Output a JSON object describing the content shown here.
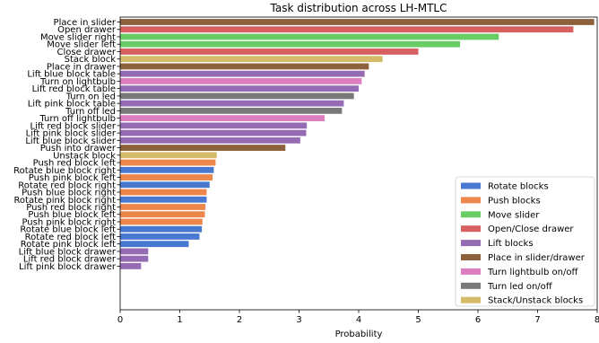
{
  "chart_data": {
    "type": "bar",
    "orientation": "horizontal",
    "title": "Task distribution across LH-MTLC",
    "xlabel": "Probability",
    "ylabel": "",
    "xlim": [
      0,
      8
    ],
    "xticks": [
      "0",
      "1",
      "2",
      "3",
      "4",
      "5",
      "6",
      "7",
      "8"
    ],
    "grid": false,
    "legend_position": "lower-right",
    "groups": [
      {
        "key": "rotate",
        "name": "Rotate blocks",
        "color": "#4878d0"
      },
      {
        "key": "push",
        "name": "Push blocks",
        "color": "#ee854a"
      },
      {
        "key": "move",
        "name": "Move slider",
        "color": "#6acc64"
      },
      {
        "key": "openclose",
        "name": "Open/Close drawer",
        "color": "#d65f5f"
      },
      {
        "key": "lift",
        "name": "Lift blocks",
        "color": "#956cb4"
      },
      {
        "key": "place",
        "name": "Place in slider/drawer",
        "color": "#8c613c"
      },
      {
        "key": "lightbulb",
        "name": "Turn lightbulb on/off",
        "color": "#dc7ec0"
      },
      {
        "key": "led",
        "name": "Turn led on/off",
        "color": "#797979"
      },
      {
        "key": "stack",
        "name": "Stack/Unstack blocks",
        "color": "#d5bb67"
      }
    ],
    "bars": [
      {
        "label": "Place in slider",
        "value": 7.95,
        "group": "place"
      },
      {
        "label": "Open drawer",
        "value": 7.6,
        "group": "openclose"
      },
      {
        "label": "Move slider right",
        "value": 6.35,
        "group": "move"
      },
      {
        "label": "Move slider left",
        "value": 5.7,
        "group": "move"
      },
      {
        "label": "Close drawer",
        "value": 5.0,
        "group": "openclose"
      },
      {
        "label": "Stack block",
        "value": 4.4,
        "group": "stack"
      },
      {
        "label": "Place in drawer",
        "value": 4.17,
        "group": "place"
      },
      {
        "label": "Lift blue block table",
        "value": 4.1,
        "group": "lift"
      },
      {
        "label": "Turn on lightbulb",
        "value": 4.05,
        "group": "lightbulb"
      },
      {
        "label": "Lift red block table",
        "value": 4.0,
        "group": "lift"
      },
      {
        "label": "Turn on led",
        "value": 3.92,
        "group": "led"
      },
      {
        "label": "Lift pink block table",
        "value": 3.75,
        "group": "lift"
      },
      {
        "label": "Turn off led",
        "value": 3.72,
        "group": "led"
      },
      {
        "label": "Turn off lightbulb",
        "value": 3.43,
        "group": "lightbulb"
      },
      {
        "label": "Lift red block slider",
        "value": 3.13,
        "group": "lift"
      },
      {
        "label": "Lift pink block slider",
        "value": 3.12,
        "group": "lift"
      },
      {
        "label": "Lift blue block slider",
        "value": 3.02,
        "group": "lift"
      },
      {
        "label": "Push into drawer",
        "value": 2.77,
        "group": "place"
      },
      {
        "label": "Unstack block",
        "value": 1.62,
        "group": "stack"
      },
      {
        "label": "Push red block left",
        "value": 1.6,
        "group": "push"
      },
      {
        "label": "Rotate blue block right",
        "value": 1.57,
        "group": "rotate"
      },
      {
        "label": "Push pink block left",
        "value": 1.55,
        "group": "push"
      },
      {
        "label": "Rotate red block right",
        "value": 1.5,
        "group": "rotate"
      },
      {
        "label": "Push blue block right",
        "value": 1.45,
        "group": "push"
      },
      {
        "label": "Rotate pink block right",
        "value": 1.45,
        "group": "rotate"
      },
      {
        "label": "Push red block right",
        "value": 1.43,
        "group": "push"
      },
      {
        "label": "Push blue block left",
        "value": 1.42,
        "group": "push"
      },
      {
        "label": "Push pink block right",
        "value": 1.38,
        "group": "push"
      },
      {
        "label": "Rotate blue block left",
        "value": 1.37,
        "group": "rotate"
      },
      {
        "label": "Rotate red block left",
        "value": 1.33,
        "group": "rotate"
      },
      {
        "label": "Rotate pink block left",
        "value": 1.15,
        "group": "rotate"
      },
      {
        "label": "Lift blue block drawer",
        "value": 0.47,
        "group": "lift"
      },
      {
        "label": "Lift red block drawer",
        "value": 0.47,
        "group": "lift"
      },
      {
        "label": "Lift pink block drawer",
        "value": 0.35,
        "group": "lift"
      }
    ]
  }
}
